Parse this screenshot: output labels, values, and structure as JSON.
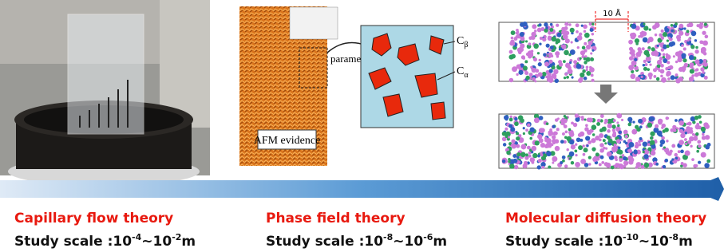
{
  "panels": [
    {
      "title": "Capillary flow theory",
      "scale": {
        "prefix": "Study scale :10",
        "exp1": "-4",
        "middle": "~10",
        "exp2": "-2",
        "unit": "m"
      }
    },
    {
      "title": "Phase field theory",
      "scale": {
        "prefix": "Study scale :10",
        "exp1": "-8",
        "middle": "~10",
        "exp2": "-6",
        "unit": "m"
      },
      "image_labels": {
        "arrow": "parameters",
        "caption": "AFM evidence",
        "phase_beta": "C",
        "beta": "β",
        "phase_alpha": "C",
        "alpha": "α"
      }
    },
    {
      "title": "Molecular diffusion theory",
      "scale": {
        "prefix": "Study scale :10",
        "exp1": "-10",
        "middle": "~10",
        "exp2": "-8",
        "unit": "m"
      },
      "image_labels": {
        "gap": "10 Å"
      }
    }
  ]
}
